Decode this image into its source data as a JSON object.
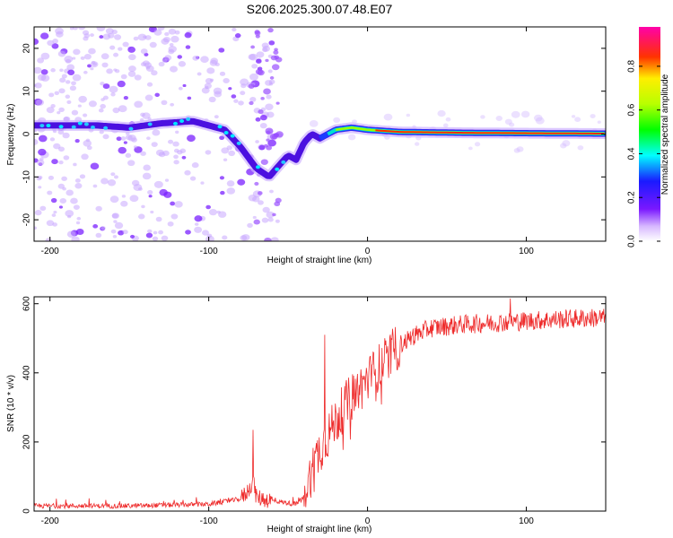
{
  "title": "S206.2025.300.07.48.E07",
  "chart_data": [
    {
      "type": "heatmap",
      "name": "spectrogram",
      "xlabel": "Height of straight line (km)",
      "ylabel": "Frequency (Hz)",
      "xlim": [
        -210,
        150
      ],
      "ylim": [
        -25,
        25
      ],
      "xticks": [
        -200,
        -100,
        0,
        100
      ],
      "yticks": [
        -20,
        -10,
        0,
        10,
        20
      ],
      "ridge": {
        "x": [
          -210,
          -190,
          -170,
          -150,
          -130,
          -110,
          -100,
          -90,
          -80,
          -70,
          -62,
          -55,
          -50,
          -45,
          -40,
          -35,
          -30,
          -25,
          -20,
          -10,
          0,
          20,
          60,
          100,
          150
        ],
        "freq": [
          2,
          2,
          2,
          1.5,
          2.5,
          3,
          2,
          1,
          -3,
          -8,
          -10,
          -7,
          -5,
          -6,
          -2,
          0,
          -1,
          0,
          1,
          1.5,
          1,
          0.5,
          0.3,
          0.2,
          0.1
        ]
      },
      "colorbar": {
        "label": "Normalized spectral amplitude",
        "ticks": [
          0.0,
          0.2,
          0.4,
          0.6,
          0.8
        ],
        "tick_labels": [
          "0.0",
          "0.2",
          "0.4",
          "0.6",
          "0.8"
        ]
      }
    },
    {
      "type": "line",
      "name": "snr",
      "xlabel": "Height of straight line (km)",
      "ylabel": "SNR (10 * v/v)",
      "xlim": [
        -210,
        150
      ],
      "ylim": [
        0,
        620
      ],
      "xticks": [
        -200,
        -100,
        0,
        100
      ],
      "yticks": [
        0,
        200,
        400,
        600
      ],
      "color": "#ee2b2b",
      "envelope": {
        "x": [
          -210,
          -150,
          -100,
          -80,
          -75,
          -72,
          -70,
          -60,
          -45,
          -40,
          -35,
          -30,
          -25,
          -20,
          -15,
          -10,
          0,
          10,
          20,
          30,
          40,
          60,
          80,
          100,
          120,
          150
        ],
        "y": [
          15,
          15,
          20,
          35,
          60,
          90,
          40,
          30,
          20,
          40,
          120,
          180,
          220,
          260,
          300,
          330,
          380,
          430,
          480,
          510,
          530,
          540,
          545,
          550,
          555,
          560
        ]
      },
      "spikes": [
        {
          "x": -72,
          "y": 235
        },
        {
          "x": -27,
          "y": 510
        },
        {
          "x": 90,
          "y": 615
        }
      ]
    }
  ]
}
